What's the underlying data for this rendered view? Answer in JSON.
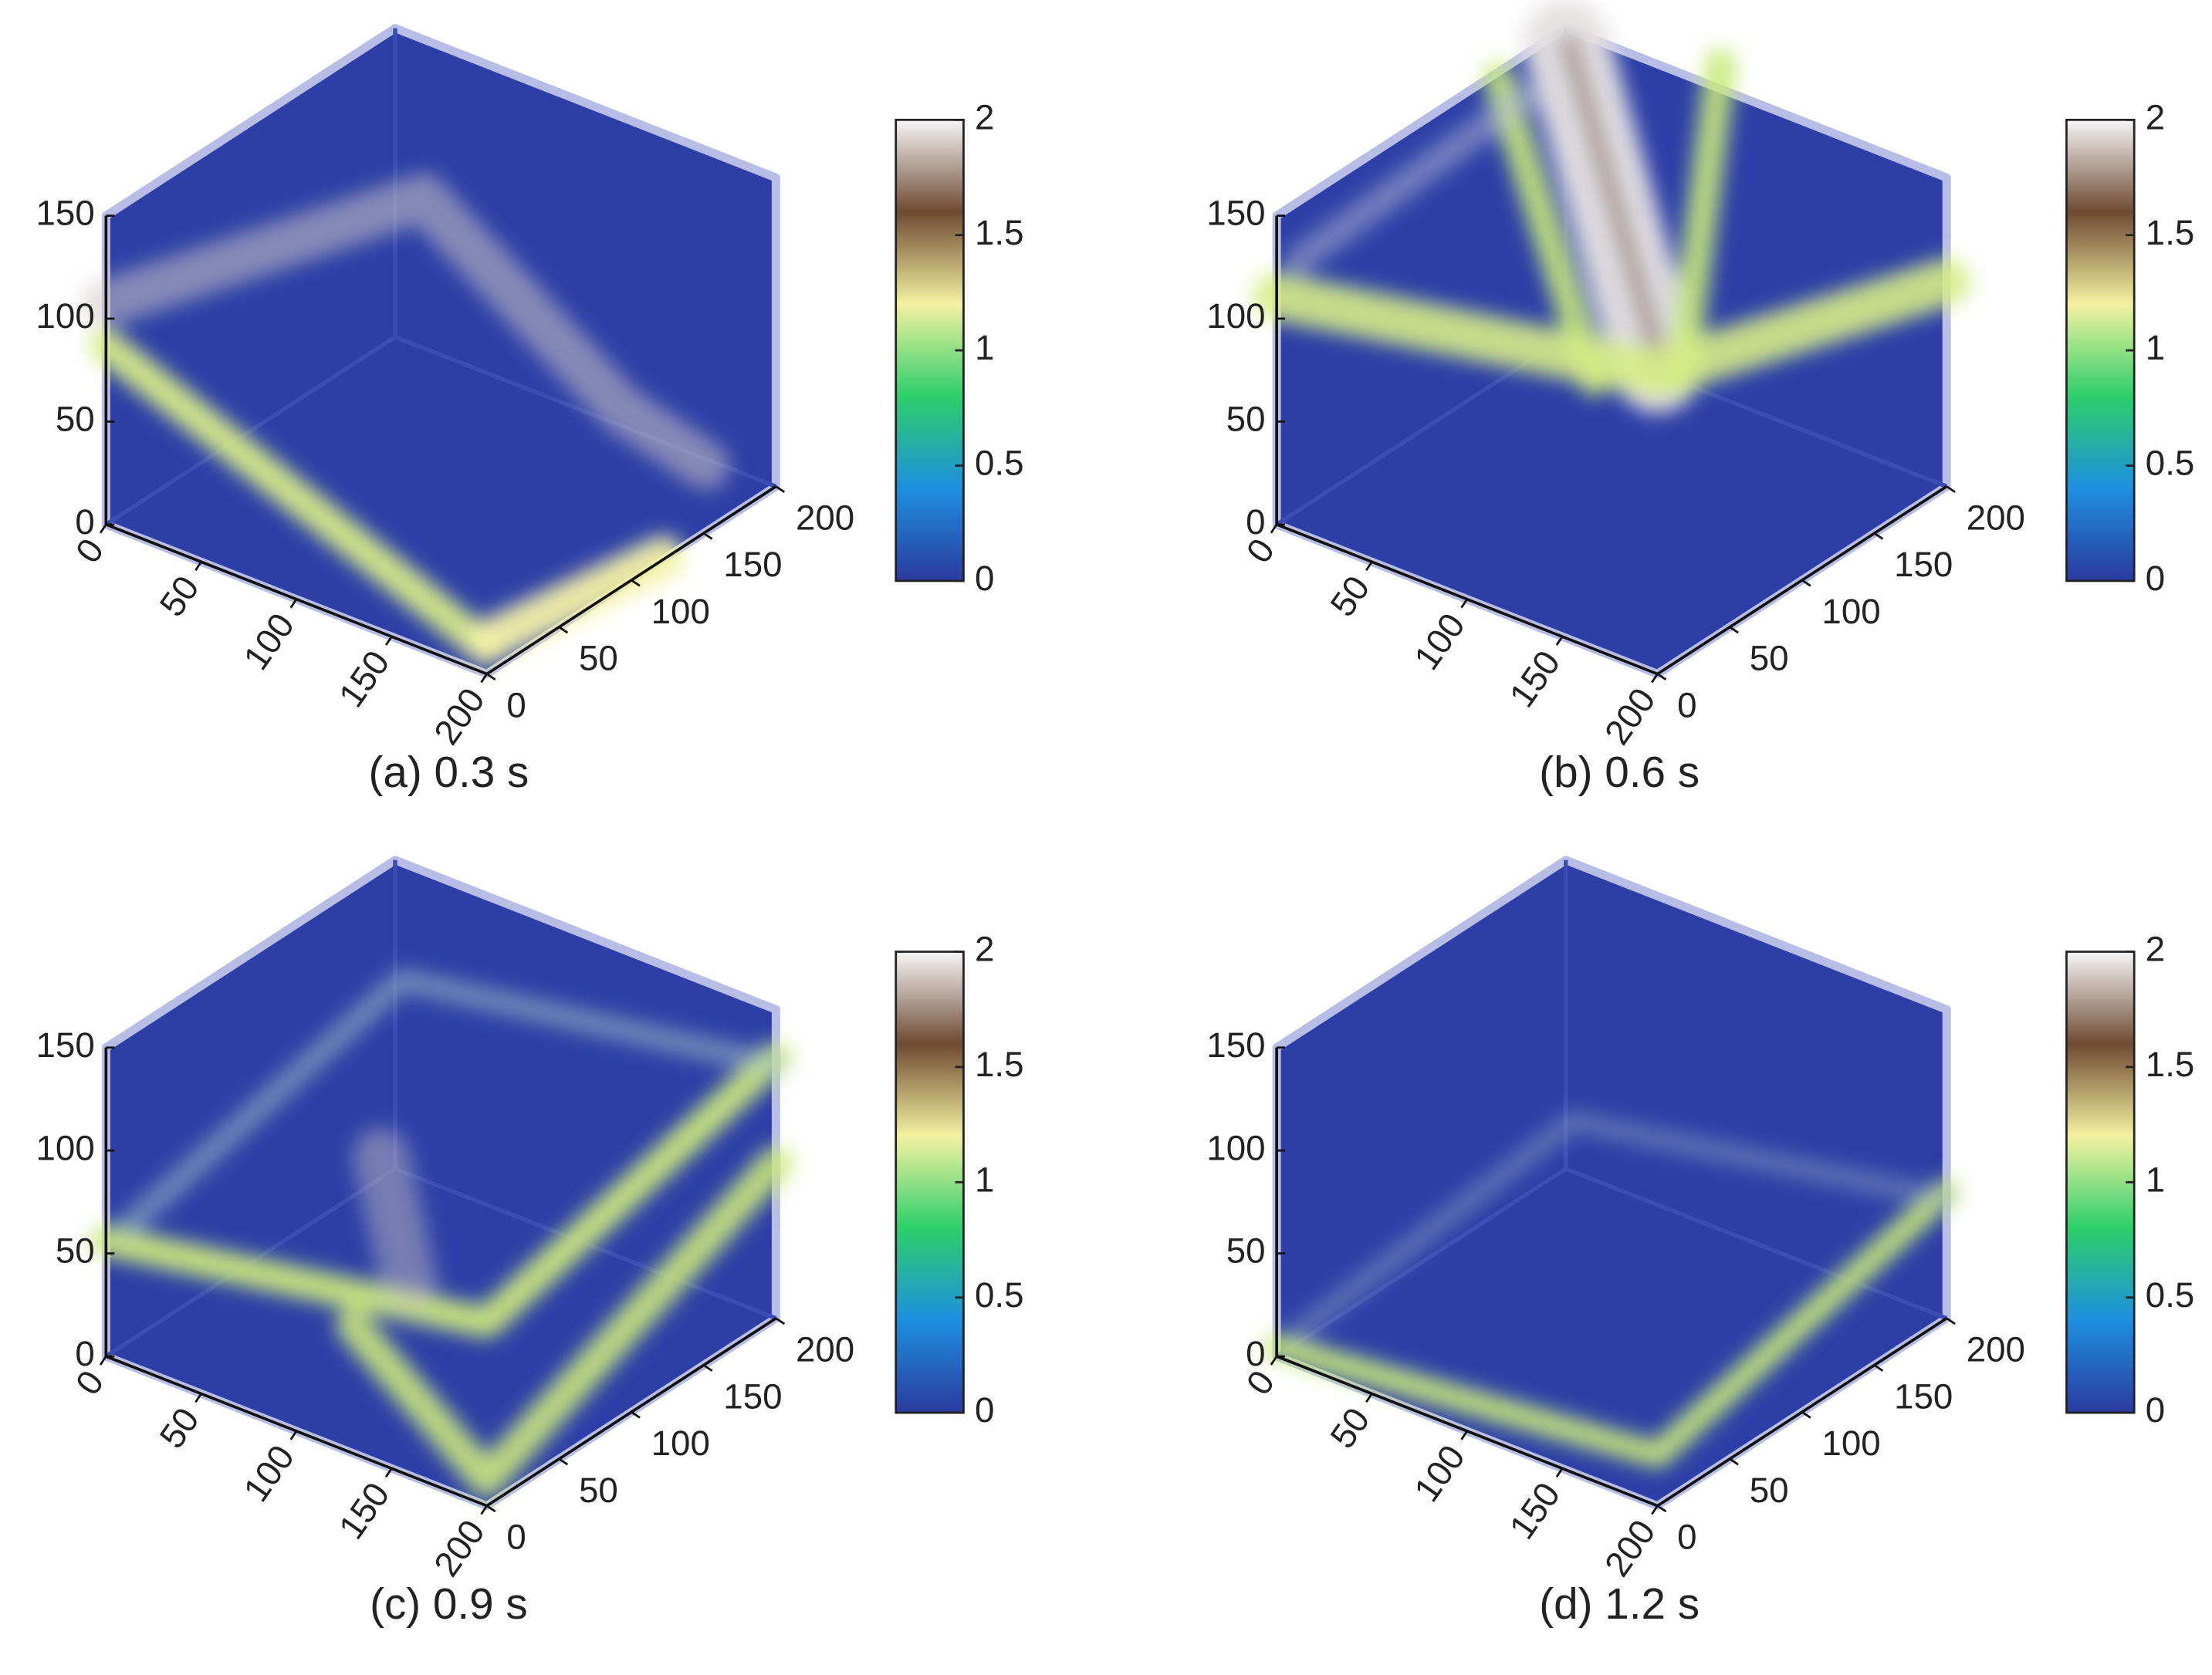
{
  "chart_data": [
    {
      "type": "volume3d",
      "title": "(a) 0.3 s",
      "xlim": [
        0,
        200
      ],
      "xticks": [
        0,
        50,
        100,
        150,
        200
      ],
      "ylim": [
        0,
        200
      ],
      "yticks": [
        0,
        50,
        100,
        150,
        200
      ],
      "zlim": [
        0,
        150
      ],
      "zticks": [
        0,
        50,
        100,
        150
      ],
      "clim": [
        0,
        2
      ],
      "cticks": [
        0,
        0.5,
        1,
        1.5,
        2
      ],
      "colormap": [
        "#2a3a9e",
        "#1e8fe0",
        "#2ccf6a",
        "#f4f1a0",
        "#6e4a32",
        "#f6f6f6"
      ]
    },
    {
      "type": "volume3d",
      "title": "(b) 0.6 s",
      "xlim": [
        0,
        200
      ],
      "xticks": [
        0,
        50,
        100,
        150,
        200
      ],
      "ylim": [
        0,
        200
      ],
      "yticks": [
        0,
        50,
        100,
        150,
        200
      ],
      "zlim": [
        0,
        150
      ],
      "zticks": [
        0,
        50,
        100,
        150
      ],
      "clim": [
        0,
        2
      ],
      "cticks": [
        0,
        0.5,
        1,
        1.5,
        2
      ],
      "colormap": [
        "#2a3a9e",
        "#1e8fe0",
        "#2ccf6a",
        "#f4f1a0",
        "#6e4a32",
        "#f6f6f6"
      ]
    },
    {
      "type": "volume3d",
      "title": "(c) 0.9 s",
      "xlim": [
        0,
        200
      ],
      "xticks": [
        0,
        50,
        100,
        150,
        200
      ],
      "ylim": [
        0,
        200
      ],
      "yticks": [
        0,
        50,
        100,
        150,
        200
      ],
      "zlim": [
        0,
        150
      ],
      "zticks": [
        0,
        50,
        100,
        150
      ],
      "clim": [
        0,
        2
      ],
      "cticks": [
        0,
        0.5,
        1,
        1.5,
        2
      ],
      "colormap": [
        "#2a3a9e",
        "#1e8fe0",
        "#2ccf6a",
        "#f4f1a0",
        "#6e4a32",
        "#f6f6f6"
      ]
    },
    {
      "type": "volume3d",
      "title": "(d) 1.2 s",
      "xlim": [
        0,
        200
      ],
      "xticks": [
        0,
        50,
        100,
        150,
        200
      ],
      "ylim": [
        0,
        200
      ],
      "yticks": [
        0,
        50,
        100,
        150,
        200
      ],
      "zlim": [
        0,
        150
      ],
      "zticks": [
        0,
        50,
        100,
        150
      ],
      "clim": [
        0,
        2
      ],
      "cticks": [
        0,
        0.5,
        1,
        1.5,
        2
      ],
      "colormap": [
        "#2a3a9e",
        "#1e8fe0",
        "#2ccf6a",
        "#f4f1a0",
        "#6e4a32",
        "#f6f6f6"
      ]
    }
  ]
}
